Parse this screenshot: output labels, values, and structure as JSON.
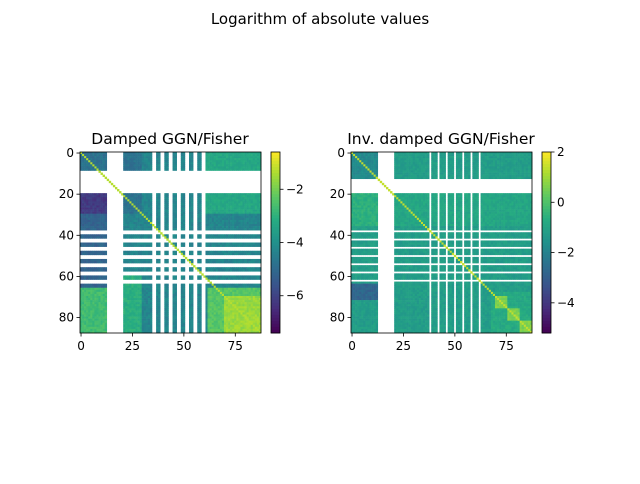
{
  "figure": {
    "suptitle": "Logarithm of absolute values"
  },
  "chart_data": [
    {
      "type": "heatmap",
      "title": "Damped GGN/Fisher",
      "xlabel": "",
      "ylabel": "",
      "xlim": [
        0,
        88
      ],
      "ylim": [
        88,
        0
      ],
      "x_ticks": [
        "0",
        "25",
        "50",
        "75"
      ],
      "y_ticks": [
        "0",
        "20",
        "40",
        "60",
        "80"
      ],
      "colormap": "viridis",
      "colorbar_range": [
        -7.4,
        -0.6
      ],
      "colorbar_ticks": [
        "−2",
        "−4",
        "−6"
      ],
      "colorbar_tick_values": [
        -2,
        -4,
        -6
      ],
      "missing_rows": [
        9,
        10,
        11,
        12,
        13,
        14,
        15,
        16,
        17,
        18,
        19,
        38,
        39,
        42,
        43,
        46,
        47,
        50,
        51,
        54,
        55,
        58,
        59,
        62,
        63
      ],
      "missing_cols": [
        13,
        14,
        15,
        16,
        17,
        18,
        19,
        20,
        35,
        36,
        39,
        40,
        43,
        44,
        47,
        48,
        51,
        52,
        55,
        56,
        59,
        60
      ],
      "blocks": [
        {
          "rows": [
            0,
            88
          ],
          "cols": [
            0,
            88
          ],
          "value": -4.3
        },
        {
          "rows": [
            0,
            30
          ],
          "cols": [
            0,
            30
          ],
          "value": -4.8
        },
        {
          "rows": [
            0,
            30
          ],
          "cols": [
            60,
            88
          ],
          "value": -3.3
        },
        {
          "rows": [
            60,
            88
          ],
          "cols": [
            0,
            30
          ],
          "value": -3.1
        },
        {
          "rows": [
            66,
            88
          ],
          "cols": [
            0,
            13
          ],
          "value": -2.7
        },
        {
          "rows": [
            66,
            88
          ],
          "cols": [
            62,
            88
          ],
          "value": -2.4
        },
        {
          "rows": [
            70,
            88
          ],
          "cols": [
            70,
            88
          ],
          "value": -1.6
        },
        {
          "rows": [
            20,
            30
          ],
          "cols": [
            0,
            13
          ],
          "value": -6.2
        },
        {
          "rows": [
            30,
            66
          ],
          "cols": [
            0,
            13
          ],
          "value": -5.2
        }
      ],
      "diagonal_value": -1.3
    },
    {
      "type": "heatmap",
      "title": "Inv. damped GGN/Fisher",
      "xlabel": "",
      "ylabel": "",
      "xlim": [
        0,
        88
      ],
      "ylim": [
        88,
        0
      ],
      "x_ticks": [
        "0",
        "25",
        "50",
        "75"
      ],
      "y_ticks": [
        "0",
        "20",
        "40",
        "60",
        "80"
      ],
      "colormap": "viridis",
      "colorbar_range": [
        -5.2,
        2.0
      ],
      "colorbar_ticks": [
        "2",
        "0",
        "−2",
        "−4"
      ],
      "colorbar_tick_values": [
        2,
        0,
        -2,
        -4
      ],
      "missing_rows": [
        13,
        14,
        15,
        16,
        17,
        18,
        19,
        38,
        42,
        46,
        50,
        54,
        58,
        62
      ],
      "missing_cols": [
        13,
        14,
        15,
        16,
        17,
        18,
        19,
        20,
        38,
        42,
        46,
        50,
        54,
        58,
        62
      ],
      "blocks": [
        {
          "rows": [
            0,
            88
          ],
          "cols": [
            0,
            88
          ],
          "value": -1.2
        },
        {
          "rows": [
            0,
            20
          ],
          "cols": [
            0,
            13
          ],
          "value": -1.8
        },
        {
          "rows": [
            20,
            36
          ],
          "cols": [
            0,
            13
          ],
          "value": -0.6
        },
        {
          "rows": [
            64,
            72
          ],
          "cols": [
            0,
            13
          ],
          "value": -2.8
        },
        {
          "rows": [
            20,
            36
          ],
          "cols": [
            21,
            88
          ],
          "value": -0.9
        },
        {
          "rows": [
            68,
            88
          ],
          "cols": [
            68,
            88
          ],
          "value": -0.8
        },
        {
          "rows": [
            70,
            76
          ],
          "cols": [
            70,
            76
          ],
          "value": 0.6
        },
        {
          "rows": [
            76,
            82
          ],
          "cols": [
            76,
            82
          ],
          "value": 0.6
        },
        {
          "rows": [
            82,
            88
          ],
          "cols": [
            82,
            88
          ],
          "value": 0.6
        }
      ],
      "diagonal_value": 1.4
    }
  ]
}
